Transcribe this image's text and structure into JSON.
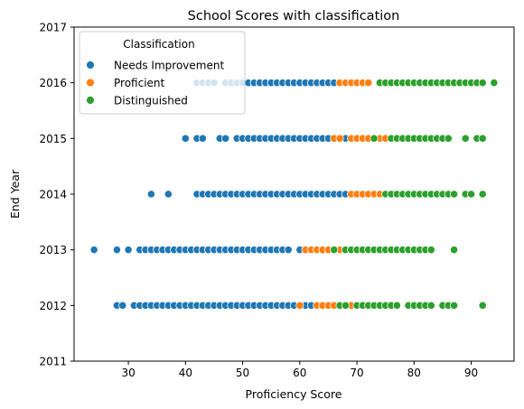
{
  "chart_data": {
    "type": "scatter",
    "title": "School Scores with classification",
    "xlabel": "Proficiency Score",
    "ylabel": "End Year",
    "xlim": [
      20.5,
      97.5
    ],
    "ylim": [
      2011,
      2017
    ],
    "xticks": [
      30,
      40,
      50,
      60,
      70,
      80,
      90
    ],
    "yticks": [
      2011,
      2012,
      2013,
      2014,
      2015,
      2016,
      2017
    ],
    "grid": false,
    "legend": {
      "title": "Classification",
      "position": "top-left"
    },
    "series": [
      {
        "name": "Needs Improvement",
        "color": "#1f77b4",
        "points": [
          [
            28,
            2012
          ],
          [
            29,
            2012
          ],
          [
            31,
            2012
          ],
          [
            32,
            2012
          ],
          [
            33,
            2012
          ],
          [
            34,
            2012
          ],
          [
            35,
            2012
          ],
          [
            36,
            2012
          ],
          [
            37,
            2012
          ],
          [
            38,
            2012
          ],
          [
            39,
            2012
          ],
          [
            40,
            2012
          ],
          [
            41,
            2012
          ],
          [
            42,
            2012
          ],
          [
            43,
            2012
          ],
          [
            44,
            2012
          ],
          [
            45,
            2012
          ],
          [
            46,
            2012
          ],
          [
            47,
            2012
          ],
          [
            48,
            2012
          ],
          [
            49,
            2012
          ],
          [
            50,
            2012
          ],
          [
            51,
            2012
          ],
          [
            52,
            2012
          ],
          [
            53,
            2012
          ],
          [
            54,
            2012
          ],
          [
            55,
            2012
          ],
          [
            56,
            2012
          ],
          [
            57,
            2012
          ],
          [
            58,
            2012
          ],
          [
            59,
            2012
          ],
          [
            61,
            2012
          ],
          [
            62,
            2012
          ],
          [
            24,
            2013
          ],
          [
            28,
            2013
          ],
          [
            30,
            2013
          ],
          [
            32,
            2013
          ],
          [
            33,
            2013
          ],
          [
            34,
            2013
          ],
          [
            35,
            2013
          ],
          [
            36,
            2013
          ],
          [
            37,
            2013
          ],
          [
            38,
            2013
          ],
          [
            39,
            2013
          ],
          [
            40,
            2013
          ],
          [
            41,
            2013
          ],
          [
            42,
            2013
          ],
          [
            43,
            2013
          ],
          [
            44,
            2013
          ],
          [
            45,
            2013
          ],
          [
            46,
            2013
          ],
          [
            47,
            2013
          ],
          [
            48,
            2013
          ],
          [
            49,
            2013
          ],
          [
            50,
            2013
          ],
          [
            51,
            2013
          ],
          [
            52,
            2013
          ],
          [
            53,
            2013
          ],
          [
            54,
            2013
          ],
          [
            55,
            2013
          ],
          [
            56,
            2013
          ],
          [
            57,
            2013
          ],
          [
            58,
            2013
          ],
          [
            60,
            2013
          ],
          [
            34,
            2014
          ],
          [
            37,
            2014
          ],
          [
            42,
            2014
          ],
          [
            43,
            2014
          ],
          [
            44,
            2014
          ],
          [
            45,
            2014
          ],
          [
            46,
            2014
          ],
          [
            47,
            2014
          ],
          [
            48,
            2014
          ],
          [
            49,
            2014
          ],
          [
            50,
            2014
          ],
          [
            51,
            2014
          ],
          [
            52,
            2014
          ],
          [
            53,
            2014
          ],
          [
            54,
            2014
          ],
          [
            55,
            2014
          ],
          [
            56,
            2014
          ],
          [
            57,
            2014
          ],
          [
            58,
            2014
          ],
          [
            59,
            2014
          ],
          [
            60,
            2014
          ],
          [
            61,
            2014
          ],
          [
            62,
            2014
          ],
          [
            63,
            2014
          ],
          [
            64,
            2014
          ],
          [
            65,
            2014
          ],
          [
            66,
            2014
          ],
          [
            67,
            2014
          ],
          [
            68,
            2014
          ],
          [
            40,
            2015
          ],
          [
            42,
            2015
          ],
          [
            43,
            2015
          ],
          [
            46,
            2015
          ],
          [
            47,
            2015
          ],
          [
            49,
            2015
          ],
          [
            50,
            2015
          ],
          [
            51,
            2015
          ],
          [
            52,
            2015
          ],
          [
            53,
            2015
          ],
          [
            54,
            2015
          ],
          [
            55,
            2015
          ],
          [
            56,
            2015
          ],
          [
            57,
            2015
          ],
          [
            58,
            2015
          ],
          [
            59,
            2015
          ],
          [
            60,
            2015
          ],
          [
            61,
            2015
          ],
          [
            62,
            2015
          ],
          [
            63,
            2015
          ],
          [
            64,
            2015
          ],
          [
            65,
            2015
          ],
          [
            67,
            2015
          ],
          [
            68,
            2015
          ],
          [
            42,
            2016
          ],
          [
            43,
            2016
          ],
          [
            44,
            2016
          ],
          [
            45,
            2016
          ],
          [
            47,
            2016
          ],
          [
            48,
            2016
          ],
          [
            49,
            2016
          ],
          [
            50,
            2016
          ],
          [
            51,
            2016
          ],
          [
            52,
            2016
          ],
          [
            53,
            2016
          ],
          [
            54,
            2016
          ],
          [
            55,
            2016
          ],
          [
            56,
            2016
          ],
          [
            57,
            2016
          ],
          [
            58,
            2016
          ],
          [
            59,
            2016
          ],
          [
            60,
            2016
          ],
          [
            61,
            2016
          ],
          [
            62,
            2016
          ],
          [
            63,
            2016
          ],
          [
            64,
            2016
          ],
          [
            65,
            2016
          ],
          [
            66,
            2016
          ]
        ]
      },
      {
        "name": "Proficient",
        "color": "#ff7f0e",
        "points": [
          [
            60,
            2012
          ],
          [
            63,
            2012
          ],
          [
            64,
            2012
          ],
          [
            65,
            2012
          ],
          [
            66,
            2012
          ],
          [
            69,
            2012
          ],
          [
            61,
            2013
          ],
          [
            62,
            2013
          ],
          [
            63,
            2013
          ],
          [
            64,
            2013
          ],
          [
            65,
            2013
          ],
          [
            67,
            2013
          ],
          [
            69,
            2014
          ],
          [
            70,
            2014
          ],
          [
            71,
            2014
          ],
          [
            72,
            2014
          ],
          [
            73,
            2014
          ],
          [
            74,
            2014
          ],
          [
            66,
            2015
          ],
          [
            67,
            2015
          ],
          [
            69,
            2015
          ],
          [
            70,
            2015
          ],
          [
            71,
            2015
          ],
          [
            72,
            2015
          ],
          [
            74,
            2015
          ],
          [
            75,
            2015
          ],
          [
            67,
            2016
          ],
          [
            68,
            2016
          ],
          [
            69,
            2016
          ],
          [
            70,
            2016
          ],
          [
            71,
            2016
          ],
          [
            72,
            2016
          ]
        ]
      },
      {
        "name": "Distinguished",
        "color": "#2ca02c",
        "points": [
          [
            67,
            2012
          ],
          [
            68,
            2012
          ],
          [
            70,
            2012
          ],
          [
            71,
            2012
          ],
          [
            72,
            2012
          ],
          [
            73,
            2012
          ],
          [
            74,
            2012
          ],
          [
            75,
            2012
          ],
          [
            76,
            2012
          ],
          [
            77,
            2012
          ],
          [
            79,
            2012
          ],
          [
            80,
            2012
          ],
          [
            81,
            2012
          ],
          [
            82,
            2012
          ],
          [
            83,
            2012
          ],
          [
            85,
            2012
          ],
          [
            86,
            2012
          ],
          [
            87,
            2012
          ],
          [
            92,
            2012
          ],
          [
            66,
            2013
          ],
          [
            68,
            2013
          ],
          [
            69,
            2013
          ],
          [
            70,
            2013
          ],
          [
            71,
            2013
          ],
          [
            72,
            2013
          ],
          [
            73,
            2013
          ],
          [
            74,
            2013
          ],
          [
            75,
            2013
          ],
          [
            76,
            2013
          ],
          [
            77,
            2013
          ],
          [
            78,
            2013
          ],
          [
            79,
            2013
          ],
          [
            80,
            2013
          ],
          [
            81,
            2013
          ],
          [
            82,
            2013
          ],
          [
            83,
            2013
          ],
          [
            87,
            2013
          ],
          [
            75,
            2014
          ],
          [
            76,
            2014
          ],
          [
            77,
            2014
          ],
          [
            78,
            2014
          ],
          [
            79,
            2014
          ],
          [
            80,
            2014
          ],
          [
            81,
            2014
          ],
          [
            82,
            2014
          ],
          [
            83,
            2014
          ],
          [
            84,
            2014
          ],
          [
            85,
            2014
          ],
          [
            86,
            2014
          ],
          [
            87,
            2014
          ],
          [
            89,
            2014
          ],
          [
            90,
            2014
          ],
          [
            92,
            2014
          ],
          [
            73,
            2015
          ],
          [
            76,
            2015
          ],
          [
            77,
            2015
          ],
          [
            78,
            2015
          ],
          [
            79,
            2015
          ],
          [
            80,
            2015
          ],
          [
            81,
            2015
          ],
          [
            82,
            2015
          ],
          [
            83,
            2015
          ],
          [
            84,
            2015
          ],
          [
            85,
            2015
          ],
          [
            86,
            2015
          ],
          [
            89,
            2015
          ],
          [
            91,
            2015
          ],
          [
            92,
            2015
          ],
          [
            74,
            2016
          ],
          [
            75,
            2016
          ],
          [
            76,
            2016
          ],
          [
            77,
            2016
          ],
          [
            78,
            2016
          ],
          [
            79,
            2016
          ],
          [
            80,
            2016
          ],
          [
            81,
            2016
          ],
          [
            82,
            2016
          ],
          [
            83,
            2016
          ],
          [
            84,
            2016
          ],
          [
            85,
            2016
          ],
          [
            86,
            2016
          ],
          [
            87,
            2016
          ],
          [
            88,
            2016
          ],
          [
            89,
            2016
          ],
          [
            90,
            2016
          ],
          [
            91,
            2016
          ],
          [
            92,
            2016
          ],
          [
            94,
            2016
          ]
        ]
      }
    ]
  }
}
